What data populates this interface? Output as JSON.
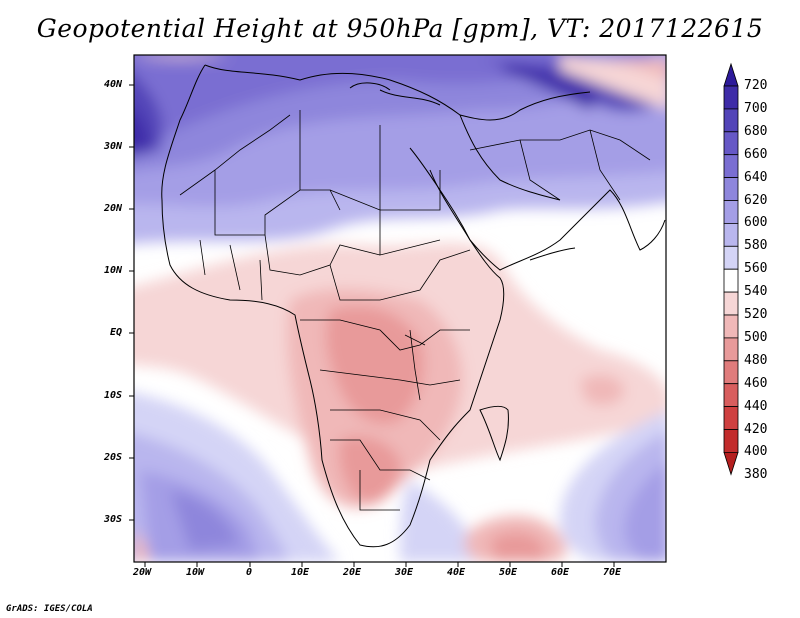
{
  "title": "Geopotential Height at 950hPa [gpm], VT: 2017122615",
  "credit": "GrADS: IGES/COLA",
  "map": {
    "region": "Africa / Middle East",
    "lon_labels": [
      "20W",
      "10W",
      "0",
      "10E",
      "20E",
      "30E",
      "40E",
      "50E",
      "60E",
      "70E"
    ],
    "lat_labels": [
      "40N",
      "30N",
      "20N",
      "10N",
      "EQ",
      "10S",
      "20S",
      "30S"
    ]
  },
  "colorbar": {
    "levels": [
      "720",
      "700",
      "680",
      "660",
      "640",
      "620",
      "600",
      "580",
      "560",
      "540",
      "520",
      "500",
      "480",
      "460",
      "440",
      "420",
      "400",
      "380"
    ],
    "colors": [
      "#2d1a9a",
      "#3e2ca8",
      "#5244b8",
      "#6658c6",
      "#7a6ed2",
      "#8e86dc",
      "#a49ee6",
      "#b9b6ee",
      "#d4d4f6",
      "#ffffff",
      "#f6d6d6",
      "#f0b8b8",
      "#e89a9a",
      "#e07c7c",
      "#d85e5e",
      "#cf4040",
      "#c22c2c",
      "#b41e1e"
    ]
  }
}
